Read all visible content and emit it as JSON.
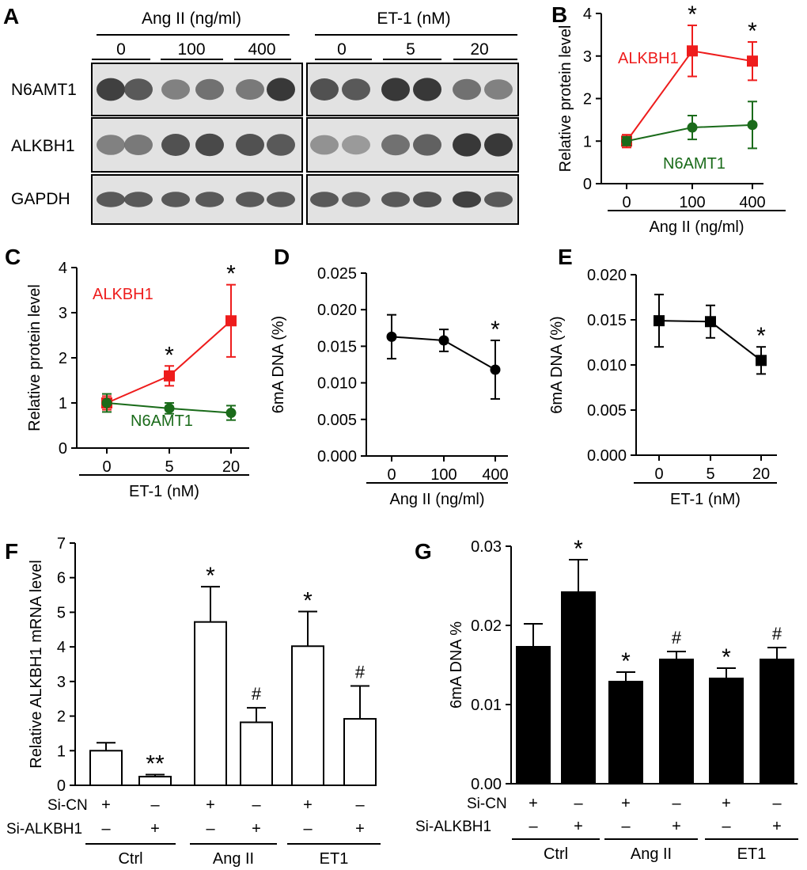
{
  "figure": {
    "panel_A": {
      "letter": "A",
      "group_left": "Ang II (ng/ml)",
      "group_right": "ET-1 (nM)",
      "doses_left": [
        "0",
        "100",
        "400"
      ],
      "doses_right": [
        "0",
        "5",
        "20"
      ],
      "rows": [
        "N6AMT1",
        "ALKBH1",
        "GAPDH"
      ]
    },
    "panel_B_letter": "B",
    "panel_C_letter": "C",
    "panel_D_letter": "D",
    "panel_E_letter": "E",
    "panel_F_letter": "F",
    "panel_G_letter": "G",
    "colors": {
      "alkbh1": "#ee1c1c",
      "n6amt1": "#1a6b1a",
      "black": "#000000"
    }
  },
  "chart_data": [
    {
      "id": "B",
      "type": "line",
      "categories": [
        "0",
        "100",
        "400"
      ],
      "xlabel": "Ang II (ng/ml)",
      "ylabel": "Relative protein level",
      "ylim": [
        0,
        4
      ],
      "yticks": [
        "0",
        "1",
        "2",
        "3",
        "4"
      ],
      "series": [
        {
          "name": "ALKBH1",
          "values": [
            1.0,
            3.12,
            2.88
          ],
          "errors": [
            0.15,
            0.6,
            0.45
          ],
          "marker": "square",
          "color": "#ee1c1c",
          "significance": [
            "",
            "*",
            "*"
          ]
        },
        {
          "name": "N6AMT1",
          "values": [
            1.0,
            1.32,
            1.38
          ],
          "errors": [
            0.1,
            0.28,
            0.55
          ],
          "marker": "circle",
          "color": "#1a6b1a",
          "significance": [
            "",
            "",
            ""
          ]
        }
      ]
    },
    {
      "id": "C",
      "type": "line",
      "categories": [
        "0",
        "5",
        "20"
      ],
      "xlabel": "ET-1 (nM)",
      "ylabel": "Relative protein level",
      "ylim": [
        0,
        4
      ],
      "yticks": [
        "0",
        "1",
        "2",
        "3",
        "4"
      ],
      "series": [
        {
          "name": "ALKBH1",
          "values": [
            1.0,
            1.6,
            2.82
          ],
          "errors": [
            0.15,
            0.22,
            0.8
          ],
          "marker": "square",
          "color": "#ee1c1c",
          "significance": [
            "",
            "*",
            "*"
          ]
        },
        {
          "name": "N6AMT1",
          "values": [
            1.0,
            0.88,
            0.78
          ],
          "errors": [
            0.2,
            0.12,
            0.16
          ],
          "marker": "circle",
          "color": "#1a6b1a",
          "significance": [
            "",
            "",
            ""
          ]
        }
      ]
    },
    {
      "id": "D",
      "type": "line",
      "categories": [
        "0",
        "100",
        "400"
      ],
      "xlabel": "Ang II (ng/ml)",
      "ylabel": "6mA DNA (%)",
      "ylim": [
        0,
        0.025
      ],
      "yticks": [
        "0.000",
        "0.005",
        "0.010",
        "0.015",
        "0.020",
        "0.025"
      ],
      "series": [
        {
          "name": "6mA DNA",
          "values": [
            0.0163,
            0.0158,
            0.0118
          ],
          "errors": [
            0.003,
            0.0015,
            0.004
          ],
          "marker": "circle",
          "color": "#000000",
          "significance": [
            "",
            "",
            "*"
          ]
        }
      ]
    },
    {
      "id": "E",
      "type": "line",
      "categories": [
        "0",
        "5",
        "20"
      ],
      "xlabel": "ET-1 (nM)",
      "ylabel": "6mA DNA (%)",
      "ylim": [
        0,
        0.02
      ],
      "yticks": [
        "0.000",
        "0.005",
        "0.010",
        "0.015",
        "0.020"
      ],
      "series": [
        {
          "name": "6mA DNA",
          "values": [
            0.0149,
            0.0148,
            0.0105
          ],
          "errors": [
            0.0029,
            0.0018,
            0.0015
          ],
          "marker": "square",
          "color": "#000000",
          "significance": [
            "",
            "",
            "*"
          ]
        }
      ]
    },
    {
      "id": "F",
      "type": "bar",
      "style": "hollow",
      "ylabel": "Relative ALKBH1 mRNA level",
      "ylim": [
        0,
        7
      ],
      "yticks": [
        "0",
        "1",
        "2",
        "3",
        "4",
        "5",
        "6",
        "7"
      ],
      "values": [
        1.0,
        0.25,
        4.72,
        1.82,
        4.02,
        1.92
      ],
      "errors": [
        0.23,
        0.06,
        1.02,
        0.42,
        1.0,
        0.95
      ],
      "significance": [
        "",
        "**",
        "*",
        "#",
        "*",
        "#"
      ],
      "sicn_label": "Si-CN",
      "sialkbh1_label": "Si-ALKBH1",
      "sicn": [
        "+",
        "–",
        "+",
        "–",
        "+",
        "–"
      ],
      "sialkbh1": [
        "–",
        "+",
        "–",
        "+",
        "–",
        "+"
      ],
      "groups": [
        "Ctrl",
        "Ang II",
        "ET1"
      ]
    },
    {
      "id": "G",
      "type": "bar",
      "style": "filled",
      "ylabel": "6mA DNA %",
      "ylim": [
        0,
        0.03
      ],
      "yticks": [
        "0.00",
        "0.01",
        "0.02",
        "0.03"
      ],
      "values": [
        0.0173,
        0.0242,
        0.0129,
        0.0157,
        0.0133,
        0.0157
      ],
      "errors": [
        0.0029,
        0.0041,
        0.0012,
        0.001,
        0.0013,
        0.0015
      ],
      "significance": [
        "",
        "*",
        "*",
        "#",
        "*",
        "#"
      ],
      "sicn_label": "Si-CN",
      "sialkbh1_label": "Si-ALKBH1",
      "sicn": [
        "+",
        "–",
        "+",
        "–",
        "+",
        "–"
      ],
      "sialkbh1": [
        "–",
        "+",
        "–",
        "+",
        "–",
        "+"
      ],
      "groups": [
        "Ctrl",
        "Ang II",
        "ET1"
      ]
    }
  ]
}
